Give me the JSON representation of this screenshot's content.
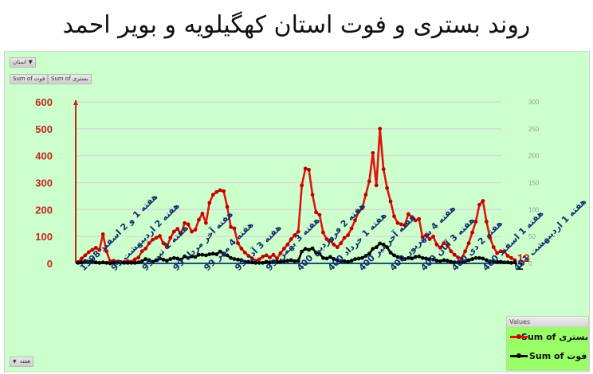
{
  "title": "روند بستری و فوت استان کهگیلویه و بویر احمد",
  "pivot": {
    "province_filter_label": "استان",
    "province_filter_icon": "filter-dropdown-icon",
    "value_buttons": [
      "Sum of فوت",
      "Sum of بستری"
    ],
    "week_filter_label": "هفته",
    "week_filter_icon": "dropdown-arrow-icon"
  },
  "legend": {
    "header": "Values",
    "items": [
      {
        "label": "Sum of بستری",
        "color": "#e0140c"
      },
      {
        "label": "Sum of فوت",
        "color": "#000000"
      }
    ]
  },
  "colors": {
    "background": "#ccffcc",
    "hospitalized": "#e0140c",
    "deaths": "#000000",
    "left_axis": "#c0281a",
    "right_axis": "#9a9a9a",
    "gridline": "#d9d9d9",
    "xlabel": "#0f2f6b",
    "baseline": "#1f4e79"
  },
  "chart_data": {
    "type": "line",
    "title": "روند بستری و فوت استان کهگیلویه و بویر احمد",
    "xlabel": "",
    "ylabel": "",
    "ylim": [
      0,
      600
    ],
    "y2lim": [
      0,
      300
    ],
    "left_ticks": [
      "0",
      "100",
      "200",
      "300",
      "400",
      "500",
      "600"
    ],
    "right_ticks": [
      "0",
      "50",
      "100",
      "150",
      "200",
      "250",
      "300"
    ],
    "grid": true,
    "legend_position": "bottom-right",
    "x_tick_labels": [
      "هفته 1 و 2 اسفند 1398",
      "هفته 2 اردیبهشت 99",
      "هفته 1 تیر 99",
      "هفته آخر مرداد 99",
      "هفته 4 مهر 99",
      "هفته 3 آذر 99",
      "هفته 3 بهمن 99",
      "هفته 2 فروردین 400",
      "هفته 1 خرداد 400",
      "هفته آخر تیر 400",
      "هفته 4 شهریور 400",
      "هفته 3 آبان 400",
      "هفته 2 دی 400",
      "هفته 1 اسفند 400",
      "هفته 1 اردیبهشت 401"
    ],
    "series": [
      {
        "name": "Sum of بستری",
        "axis": "left",
        "values": [
          5,
          18,
          30,
          42,
          50,
          58,
          50,
          108,
          45,
          8,
          10,
          6,
          5,
          6,
          8,
          6,
          15,
          22,
          45,
          55,
          75,
          88,
          95,
          102,
          75,
          60,
          95,
          118,
          128,
          110,
          150,
          145,
          118,
          125,
          162,
          185,
          150,
          225,
          255,
          265,
          272,
          268,
          210,
          135,
          130,
          75,
          55,
          40,
          28,
          18,
          10,
          15,
          25,
          30,
          22,
          32,
          18,
          38,
          55,
          70,
          90,
          105,
          118,
          290,
          352,
          348,
          255,
          190,
          180,
          115,
          90,
          85,
          70,
          60,
          75,
          95,
          105,
          130,
          160,
          192,
          205,
          255,
          305,
          410,
          290,
          500,
          350,
          280,
          230,
          175,
          150,
          145,
          142,
          183,
          172,
          160,
          165,
          98,
          105,
          90,
          100,
          70,
          58,
          75,
          68,
          45,
          32,
          22,
          18,
          45,
          75,
          115,
          155,
          218,
          232,
          155,
          95,
          60,
          38,
          45,
          45,
          28,
          20,
          12
        ],
        "last_label": "12"
      },
      {
        "name": "Sum of فوت",
        "axis": "right",
        "values": [
          1,
          2,
          4,
          3,
          4,
          2,
          1,
          2,
          1,
          0,
          1,
          1,
          1,
          1,
          1,
          1,
          1,
          2,
          4,
          8,
          6,
          3,
          6,
          9,
          7,
          5,
          8,
          10,
          9,
          7,
          13,
          10,
          13,
          12,
          16,
          16,
          15,
          17,
          18,
          17,
          22,
          18,
          15,
          10,
          8,
          7,
          6,
          3,
          3,
          2,
          1,
          1,
          1,
          3,
          2,
          4,
          3,
          3,
          4,
          5,
          6,
          4,
          5,
          22,
          27,
          25,
          28,
          20,
          18,
          10,
          9,
          12,
          8,
          6,
          4,
          4,
          3,
          5,
          8,
          9,
          10,
          14,
          18,
          27,
          30,
          37,
          35,
          30,
          20,
          15,
          12,
          10,
          8,
          10,
          9,
          12,
          13,
          10,
          9,
          8,
          7,
          5,
          4,
          6,
          5,
          3,
          2,
          2,
          2,
          4,
          6,
          8,
          10,
          10,
          9,
          6,
          4,
          4,
          3,
          3,
          2,
          2,
          1,
          2
        ],
        "last_label": "2"
      }
    ]
  }
}
